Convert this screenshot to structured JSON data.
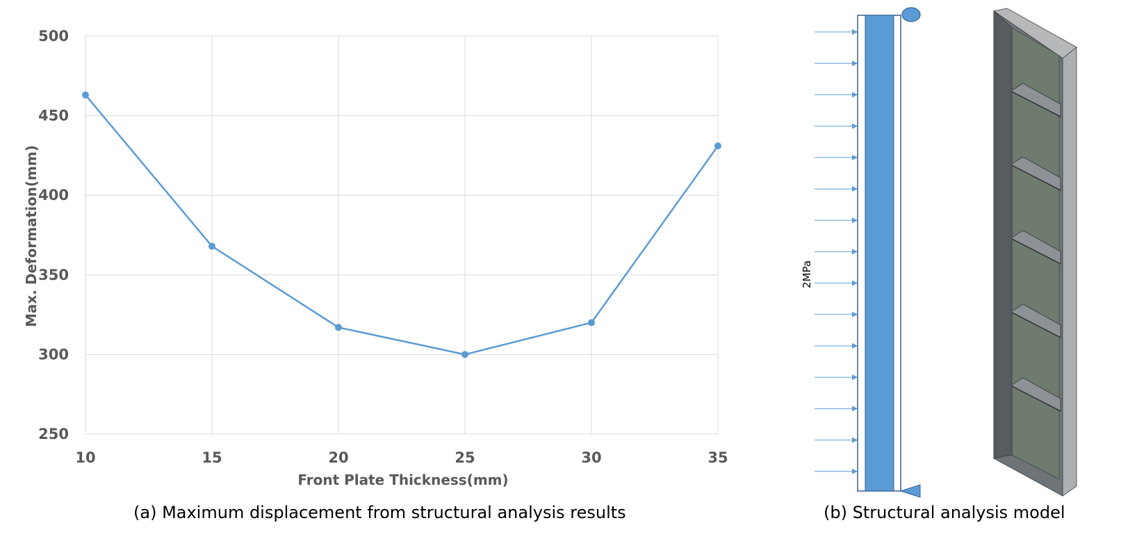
{
  "chart_data": {
    "type": "line",
    "x": [
      10,
      15,
      20,
      25,
      30,
      35
    ],
    "series": [
      {
        "values": [
          463,
          368,
          317,
          300,
          320,
          431
        ]
      }
    ],
    "xlabel": "Front Plate Thickness(mm)",
    "ylabel": "Max. Deformation(mm)",
    "xlim": [
      10,
      35
    ],
    "ylim": [
      250,
      500
    ],
    "xticks": [
      "10",
      "15",
      "20",
      "25",
      "30",
      "35"
    ],
    "yticks": [
      "250",
      "300",
      "350",
      "400",
      "450",
      "500"
    ],
    "grid": true,
    "line_color": "#5b9bd5"
  },
  "captions": {
    "a": "(a) Maximum displacement from structural analysis results",
    "b": "(b) Structural analysis model"
  },
  "model": {
    "load_label": "2MPa",
    "plate_color": "#5b9bd5",
    "frame_color": "#6e7378",
    "panel_color": "#6e7b6e"
  }
}
